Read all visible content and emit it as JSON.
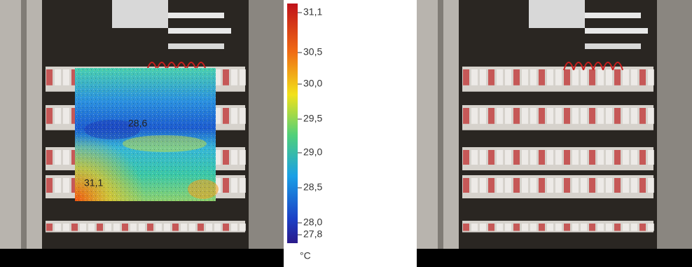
{
  "thermal_image": {
    "annotations": [
      "28,6",
      "31,1"
    ]
  },
  "color_scale": {
    "labels": [
      "31,1",
      "30,5",
      "30,0",
      "29,5",
      "29,0",
      "28,5",
      "28,0",
      "27,8"
    ],
    "unit": "°C"
  }
}
